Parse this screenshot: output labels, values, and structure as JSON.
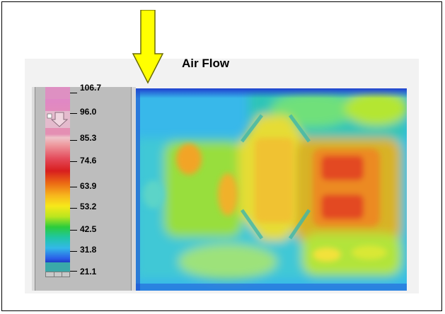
{
  "annotation": {
    "airflow_label": "Air Flow"
  },
  "legend": {
    "labels": [
      "106.7",
      "96.0",
      "85.3",
      "74.6",
      "63.9",
      "53.2",
      "42.5",
      "31.8",
      "21.1"
    ]
  },
  "colors": {
    "arrow_fill": "#ffff00",
    "arrow_stroke": "#6b6b00",
    "panel_gray": "#bdbdbd",
    "map_cool": "#2f6ee0",
    "map_mid": "#9ce428",
    "map_hot": "#e2401e"
  },
  "icons": {
    "arrow": "down-arrow-icon"
  }
}
